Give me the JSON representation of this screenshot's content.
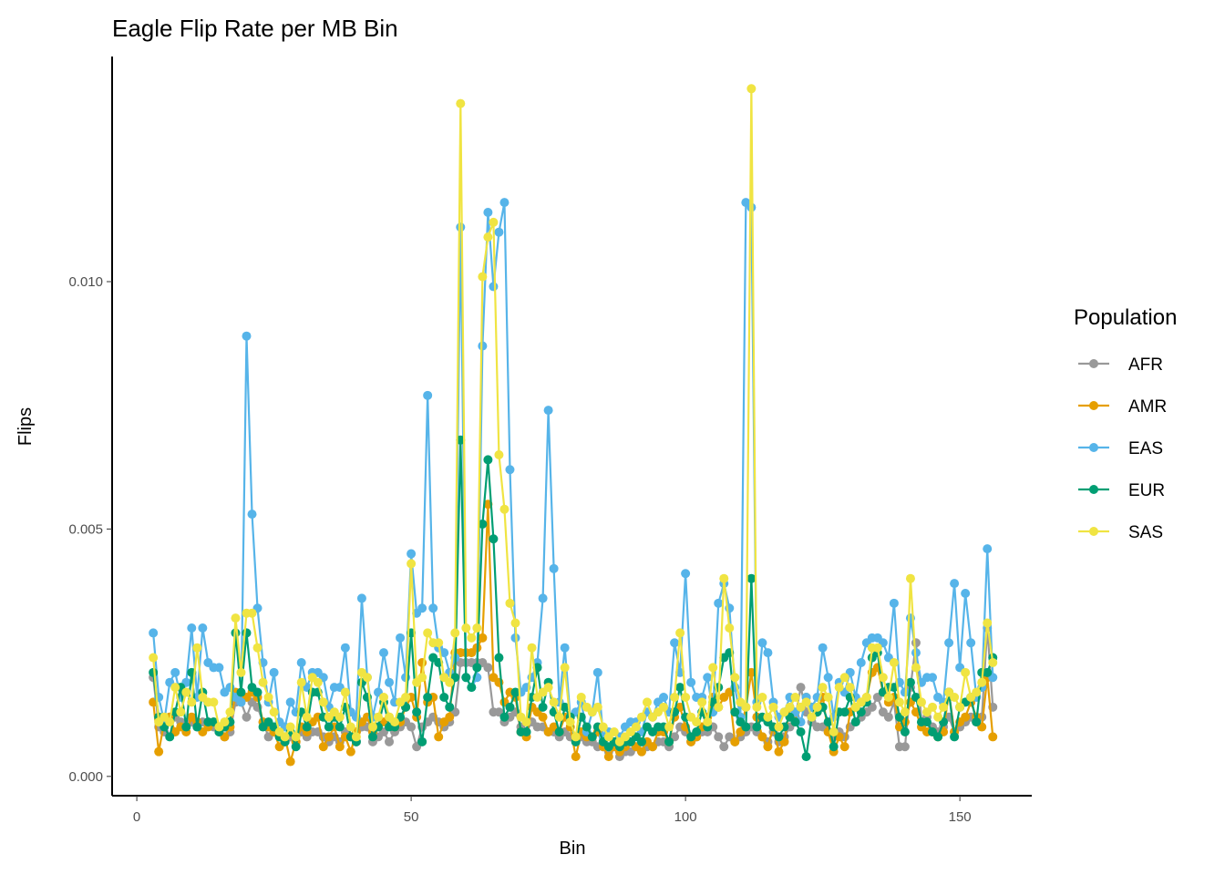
{
  "chart_data": {
    "type": "line",
    "title": "Eagle Flip Rate per MB Bin",
    "x_label": "Bin",
    "y_label": "Flips",
    "legend_title": "Population",
    "legend_position": "right",
    "xlim": [
      -4.5,
      163.1
    ],
    "xticks": [
      0,
      50,
      100,
      150
    ],
    "ylim": [
      -0.00039,
      0.01455
    ],
    "yticks": [
      {
        "value": 0,
        "label": "0.000"
      },
      0.005,
      {
        "value": 0.01,
        "label": "0.010"
      }
    ],
    "grid": false,
    "x": [
      3,
      4,
      5,
      6,
      7,
      8,
      9,
      10,
      11,
      12,
      13,
      14,
      15,
      16,
      17,
      18,
      19,
      20,
      21,
      22,
      23,
      24,
      25,
      26,
      27,
      28,
      29,
      30,
      31,
      32,
      33,
      34,
      35,
      36,
      37,
      38,
      39,
      40,
      41,
      42,
      43,
      44,
      45,
      46,
      47,
      48,
      49,
      50,
      51,
      52,
      53,
      54,
      55,
      56,
      57,
      58,
      59,
      60,
      61,
      62,
      63,
      64,
      65,
      66,
      67,
      68,
      69,
      70,
      71,
      72,
      73,
      74,
      75,
      76,
      77,
      78,
      79,
      80,
      81,
      82,
      83,
      84,
      85,
      86,
      87,
      88,
      89,
      90,
      91,
      92,
      93,
      94,
      95,
      96,
      97,
      98,
      99,
      100,
      101,
      102,
      103,
      104,
      105,
      106,
      107,
      108,
      109,
      110,
      111,
      112,
      113,
      114,
      115,
      116,
      117,
      118,
      119,
      120,
      121,
      122,
      123,
      124,
      125,
      126,
      127,
      128,
      129,
      130,
      131,
      132,
      133,
      134,
      135,
      136,
      137,
      138,
      139,
      140,
      141,
      142,
      143,
      144,
      145,
      146,
      147,
      148,
      149,
      150,
      151,
      152,
      153,
      154,
      155,
      156
    ],
    "series": [
      {
        "name": "AFR",
        "color": "#999999",
        "values": [
          0.002,
          0.001,
          0.0009,
          0.0011,
          0.0012,
          0.0011,
          0.001,
          0.0011,
          0.001,
          0.0011,
          0.0011,
          0.001,
          0.0009,
          0.0008,
          0.0009,
          0.0015,
          0.0015,
          0.0012,
          0.0015,
          0.0014,
          0.0011,
          0.0008,
          0.0009,
          0.0008,
          0.0007,
          0.0008,
          0.0007,
          0.0009,
          0.0008,
          0.0009,
          0.0009,
          0.0008,
          0.0007,
          0.0008,
          0.0007,
          0.0009,
          0.0008,
          0.0007,
          0.001,
          0.001,
          0.0007,
          0.0008,
          0.0009,
          0.0007,
          0.0009,
          0.001,
          0.0011,
          0.001,
          0.0006,
          0.001,
          0.0011,
          0.0012,
          0.0011,
          0.001,
          0.0011,
          0.0013,
          0.0023,
          0.0023,
          0.0023,
          0.0023,
          0.0023,
          0.0022,
          0.0013,
          0.0013,
          0.0011,
          0.0012,
          0.0013,
          0.001,
          0.0009,
          0.0011,
          0.001,
          0.001,
          0.0009,
          0.0009,
          0.0008,
          0.0009,
          0.0008,
          0.0007,
          0.0008,
          0.0007,
          0.0007,
          0.0006,
          0.0006,
          0.0005,
          0.0006,
          0.0004,
          0.0005,
          0.0005,
          0.0006,
          0.0005,
          0.0006,
          0.0006,
          0.0007,
          0.0007,
          0.0006,
          0.0008,
          0.001,
          0.0009,
          0.0007,
          0.0008,
          0.0009,
          0.0009,
          0.001,
          0.0008,
          0.0006,
          0.0008,
          0.0007,
          0.0008,
          0.0009,
          0.001,
          0.0009,
          0.0008,
          0.0007,
          0.0009,
          0.0007,
          0.0008,
          0.001,
          0.0012,
          0.0018,
          0.0013,
          0.0011,
          0.001,
          0.001,
          0.0009,
          0.0008,
          0.0009,
          0.0008,
          0.001,
          0.0011,
          0.0012,
          0.0013,
          0.0014,
          0.0016,
          0.0013,
          0.0012,
          0.0015,
          0.0006,
          0.0006,
          0.0018,
          0.0027,
          0.0011,
          0.0012,
          0.001,
          0.0009,
          0.001,
          0.0012,
          0.0009,
          0.001,
          0.0011,
          0.0012,
          0.0011,
          0.0012,
          0.003,
          0.0014
        ]
      },
      {
        "name": "AMR",
        "color": "#E69F00",
        "values": [
          0.0015,
          0.0005,
          0.0011,
          0.0012,
          0.0009,
          0.001,
          0.0009,
          0.0012,
          0.0011,
          0.0009,
          0.001,
          0.0011,
          0.001,
          0.0008,
          0.001,
          0.0017,
          0.0016,
          0.0016,
          0.0017,
          0.0016,
          0.0011,
          0.001,
          0.0009,
          0.0006,
          0.0008,
          0.0003,
          0.0007,
          0.001,
          0.0009,
          0.0011,
          0.0012,
          0.0006,
          0.0008,
          0.001,
          0.0006,
          0.0008,
          0.0005,
          0.0009,
          0.0011,
          0.0012,
          0.0009,
          0.001,
          0.0011,
          0.0012,
          0.001,
          0.0011,
          0.0014,
          0.0016,
          0.0012,
          0.0023,
          0.0015,
          0.0016,
          0.0008,
          0.0011,
          0.0012,
          0.0025,
          0.0025,
          0.0025,
          0.0025,
          0.0026,
          0.0028,
          0.0055,
          0.002,
          0.0019,
          0.0015,
          0.0017,
          0.0016,
          0.0009,
          0.0008,
          0.0014,
          0.0013,
          0.0012,
          0.0009,
          0.001,
          0.0009,
          0.0012,
          0.001,
          0.0004,
          0.0009,
          0.0008,
          0.0008,
          0.0009,
          0.0006,
          0.0004,
          0.0006,
          0.0005,
          0.0006,
          0.0007,
          0.0006,
          0.0005,
          0.0007,
          0.0006,
          0.0009,
          0.0009,
          0.0007,
          0.0012,
          0.0014,
          0.001,
          0.0007,
          0.0008,
          0.001,
          0.0012,
          0.0016,
          0.0014,
          0.0016,
          0.0017,
          0.0007,
          0.0009,
          0.0014,
          0.0021,
          0.0012,
          0.0008,
          0.0006,
          0.001,
          0.0005,
          0.0007,
          0.0014,
          0.0011,
          0.0014,
          0.0016,
          0.0014,
          0.0013,
          0.0016,
          0.0009,
          0.0005,
          0.0008,
          0.0006,
          0.0013,
          0.0014,
          0.0015,
          0.0016,
          0.0021,
          0.0022,
          0.0017,
          0.0015,
          0.0016,
          0.001,
          0.0011,
          0.0015,
          0.0013,
          0.001,
          0.0009,
          0.0009,
          0.0008,
          0.0009,
          0.0017,
          0.0009,
          0.0011,
          0.0012,
          0.0015,
          0.0012,
          0.001,
          0.002,
          0.0008
        ]
      },
      {
        "name": "EAS",
        "color": "#56B4E9",
        "values": [
          0.0029,
          0.0016,
          0.0011,
          0.0019,
          0.0021,
          0.0016,
          0.0019,
          0.003,
          0.0016,
          0.003,
          0.0023,
          0.0022,
          0.0022,
          0.0017,
          0.0018,
          0.0016,
          0.0015,
          0.0089,
          0.0053,
          0.0034,
          0.0023,
          0.0015,
          0.0021,
          0.0011,
          0.001,
          0.0015,
          0.0013,
          0.0023,
          0.0018,
          0.0021,
          0.0021,
          0.002,
          0.0014,
          0.0018,
          0.0018,
          0.0026,
          0.0013,
          0.0012,
          0.0036,
          0.002,
          0.0012,
          0.0017,
          0.0025,
          0.0019,
          0.0015,
          0.0028,
          0.002,
          0.0045,
          0.0033,
          0.0034,
          0.0077,
          0.0034,
          0.0026,
          0.0025,
          0.0021,
          0.0024,
          0.0111,
          0.002,
          0.0018,
          0.002,
          0.0087,
          0.0114,
          0.0099,
          0.011,
          0.0116,
          0.0062,
          0.0028,
          0.0017,
          0.0018,
          0.002,
          0.0023,
          0.0036,
          0.0074,
          0.0042,
          0.0015,
          0.0026,
          0.0012,
          0.0013,
          0.0015,
          0.0009,
          0.0013,
          0.0021,
          0.0008,
          0.0009,
          0.0007,
          0.0008,
          0.001,
          0.0011,
          0.0011,
          0.0009,
          0.0013,
          0.0012,
          0.0015,
          0.0016,
          0.0013,
          0.0027,
          0.0021,
          0.0041,
          0.0019,
          0.0016,
          0.0016,
          0.002,
          0.0013,
          0.0035,
          0.0039,
          0.0034,
          0.0018,
          0.0012,
          0.0116,
          0.0115,
          0.0015,
          0.0027,
          0.0025,
          0.0015,
          0.0012,
          0.0013,
          0.0016,
          0.0013,
          0.0011,
          0.0016,
          0.0014,
          0.0016,
          0.0026,
          0.002,
          0.0012,
          0.0019,
          0.0017,
          0.0021,
          0.0016,
          0.0023,
          0.0027,
          0.0028,
          0.0028,
          0.0027,
          0.0024,
          0.0035,
          0.0019,
          0.0017,
          0.0032,
          0.0025,
          0.0019,
          0.002,
          0.002,
          0.0016,
          0.0015,
          0.0027,
          0.0039,
          0.0022,
          0.0037,
          0.0027,
          0.0016,
          0.0018,
          0.0046,
          0.002
        ]
      },
      {
        "name": "EUR",
        "color": "#009E73",
        "values": [
          0.0021,
          0.0012,
          0.001,
          0.0008,
          0.0013,
          0.0018,
          0.001,
          0.0021,
          0.001,
          0.0017,
          0.0011,
          0.0011,
          0.0009,
          0.001,
          0.0011,
          0.0029,
          0.0017,
          0.0029,
          0.0018,
          0.0017,
          0.001,
          0.0011,
          0.001,
          0.0008,
          0.0007,
          0.0009,
          0.0006,
          0.0013,
          0.001,
          0.0017,
          0.0017,
          0.0012,
          0.001,
          0.0012,
          0.001,
          0.0014,
          0.0008,
          0.0007,
          0.0019,
          0.0016,
          0.0008,
          0.001,
          0.0015,
          0.001,
          0.001,
          0.0012,
          0.0014,
          0.0029,
          0.0013,
          0.0007,
          0.0016,
          0.0024,
          0.0023,
          0.0016,
          0.0014,
          0.002,
          0.0068,
          0.002,
          0.0018,
          0.0022,
          0.0051,
          0.0064,
          0.0048,
          0.0024,
          0.0012,
          0.0014,
          0.0017,
          0.0009,
          0.0009,
          0.0016,
          0.0022,
          0.0014,
          0.0019,
          0.0013,
          0.0009,
          0.0014,
          0.0012,
          0.0007,
          0.0012,
          0.001,
          0.0008,
          0.001,
          0.0007,
          0.0006,
          0.0007,
          0.0006,
          0.0007,
          0.0007,
          0.0008,
          0.0007,
          0.001,
          0.0009,
          0.001,
          0.001,
          0.0007,
          0.0013,
          0.0018,
          0.0012,
          0.0008,
          0.0009,
          0.0013,
          0.001,
          0.0015,
          0.0018,
          0.0024,
          0.0025,
          0.0013,
          0.0011,
          0.001,
          0.004,
          0.001,
          0.0012,
          0.0011,
          0.001,
          0.0008,
          0.001,
          0.0012,
          0.0011,
          0.0009,
          0.0004,
          0.0012,
          0.0013,
          0.0014,
          0.0011,
          0.0006,
          0.0013,
          0.0013,
          0.0016,
          0.0011,
          0.0013,
          0.0015,
          0.0024,
          0.0025,
          0.0017,
          0.0018,
          0.0018,
          0.0012,
          0.0009,
          0.0019,
          0.0016,
          0.0011,
          0.0011,
          0.0009,
          0.0008,
          0.0011,
          0.0017,
          0.0008,
          0.0014,
          0.0015,
          0.0016,
          0.0011,
          0.0021,
          0.0021,
          0.0024
        ]
      },
      {
        "name": "SAS",
        "color": "#F0E442",
        "values": [
          0.0024,
          0.0011,
          0.0012,
          0.0011,
          0.0018,
          0.0013,
          0.0017,
          0.0015,
          0.0026,
          0.0016,
          0.0015,
          0.0015,
          0.001,
          0.0011,
          0.0013,
          0.0032,
          0.0021,
          0.0033,
          0.0033,
          0.0026,
          0.0019,
          0.0016,
          0.0013,
          0.0009,
          0.0008,
          0.001,
          0.0008,
          0.0019,
          0.0012,
          0.002,
          0.0019,
          0.0015,
          0.0012,
          0.0013,
          0.0012,
          0.0017,
          0.001,
          0.0008,
          0.0021,
          0.002,
          0.001,
          0.0012,
          0.0016,
          0.0012,
          0.0011,
          0.0015,
          0.0016,
          0.0043,
          0.0019,
          0.002,
          0.0029,
          0.0027,
          0.0027,
          0.002,
          0.0019,
          0.0029,
          0.0136,
          0.003,
          0.0028,
          0.003,
          0.0101,
          0.0109,
          0.0112,
          0.0065,
          0.0054,
          0.0035,
          0.0031,
          0.0012,
          0.0011,
          0.0026,
          0.0016,
          0.0017,
          0.0018,
          0.0015,
          0.0012,
          0.0022,
          0.0011,
          0.0008,
          0.0016,
          0.0014,
          0.0013,
          0.0014,
          0.001,
          0.0008,
          0.0009,
          0.0007,
          0.0008,
          0.0009,
          0.001,
          0.0012,
          0.0015,
          0.0012,
          0.0013,
          0.0014,
          0.001,
          0.0016,
          0.0029,
          0.0016,
          0.0012,
          0.0011,
          0.0015,
          0.0011,
          0.0022,
          0.0014,
          0.004,
          0.003,
          0.002,
          0.0015,
          0.0014,
          0.0139,
          0.0014,
          0.0016,
          0.0012,
          0.0014,
          0.001,
          0.0013,
          0.0014,
          0.0016,
          0.0014,
          0.0015,
          0.0012,
          0.0014,
          0.0018,
          0.0016,
          0.0009,
          0.0018,
          0.002,
          0.0018,
          0.0014,
          0.0015,
          0.0016,
          0.0026,
          0.0026,
          0.002,
          0.0016,
          0.0023,
          0.0015,
          0.0013,
          0.004,
          0.0022,
          0.0015,
          0.0013,
          0.0014,
          0.0012,
          0.0014,
          0.0017,
          0.0016,
          0.0014,
          0.0021,
          0.0016,
          0.0017,
          0.0019,
          0.0031,
          0.0023
        ]
      }
    ]
  }
}
